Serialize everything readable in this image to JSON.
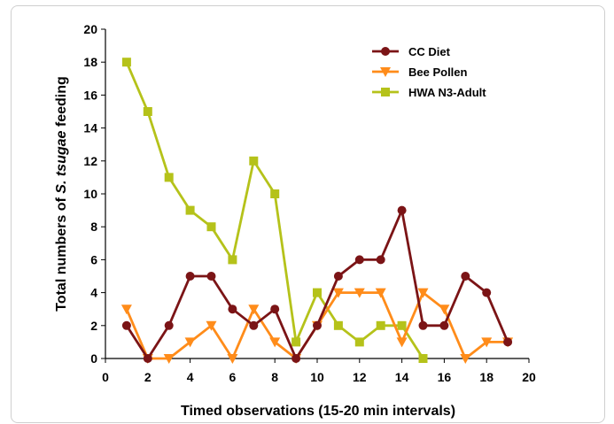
{
  "chart_data": {
    "type": "line",
    "xlabel": "Timed observations (15-20 min intervals)",
    "ylabel_parts": [
      "Total numbers of ",
      "S. tsugae",
      " feeding"
    ],
    "xlim": [
      0,
      20
    ],
    "ylim": [
      0,
      20
    ],
    "xticks": [
      0,
      2,
      4,
      6,
      8,
      10,
      12,
      14,
      16,
      18,
      20
    ],
    "yticks": [
      0,
      2,
      4,
      6,
      8,
      10,
      12,
      14,
      16,
      18,
      20
    ],
    "grid": false,
    "legend_position": "top-right",
    "series": [
      {
        "name": "CC Diet",
        "color": "#7b1416",
        "marker": "circle",
        "x": [
          1,
          2,
          3,
          4,
          5,
          6,
          7,
          8,
          9,
          10,
          11,
          12,
          13,
          14,
          15,
          16,
          17,
          18,
          19
        ],
        "y": [
          2,
          0,
          2,
          5,
          5,
          3,
          2,
          3,
          0,
          2,
          5,
          6,
          6,
          9,
          2,
          2,
          5,
          4,
          1
        ]
      },
      {
        "name": "Bee Pollen",
        "color": "#ff8c1a",
        "marker": "triangle-down",
        "x": [
          1,
          2,
          3,
          4,
          5,
          6,
          7,
          8,
          9,
          10,
          11,
          12,
          13,
          14,
          15,
          16,
          17,
          18,
          19
        ],
        "y": [
          3,
          0,
          0,
          1,
          2,
          0,
          3,
          1,
          0,
          2,
          4,
          4,
          4,
          1,
          4,
          3,
          0,
          1,
          1
        ]
      },
      {
        "name": "HWA N3-Adult",
        "color": "#b5c21a",
        "marker": "square",
        "x": [
          1,
          2,
          3,
          4,
          5,
          6,
          7,
          8,
          9,
          10,
          11,
          12,
          13,
          14,
          15
        ],
        "y": [
          18,
          15,
          11,
          9,
          8,
          6,
          12,
          10,
          1,
          4,
          2,
          1,
          2,
          2,
          0
        ]
      }
    ]
  }
}
